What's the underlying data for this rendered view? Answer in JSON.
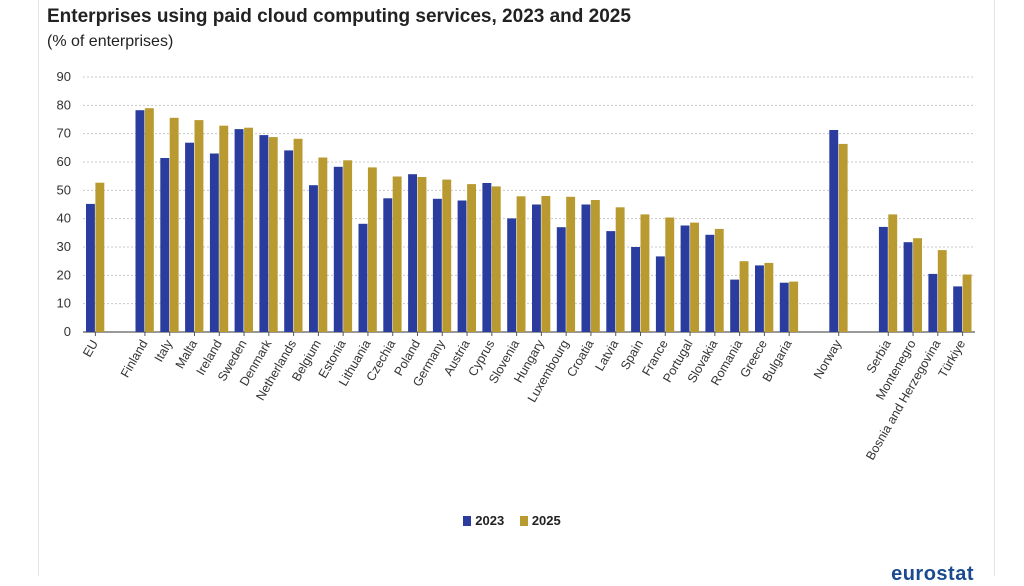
{
  "chart_data": {
    "type": "bar",
    "title": "Enterprises using paid cloud computing services, 2023 and 2025",
    "subtitle": "(% of enterprises)",
    "xlabel": "",
    "ylabel": "",
    "ylim": [
      0,
      90
    ],
    "yticks": [
      0,
      10,
      20,
      30,
      40,
      50,
      60,
      70,
      80,
      90
    ],
    "grid": true,
    "legend": "bottom-center",
    "categories": [
      "EU",
      "Finland",
      "Italy",
      "Malta",
      "Ireland",
      "Sweden",
      "Denmark",
      "Netherlands",
      "Belgium",
      "Estonia",
      "Lithuania",
      "Czechia",
      "Poland",
      "Germany",
      "Austria",
      "Cyprus",
      "Slovenia",
      "Hungary",
      "Luxembourg",
      "Croatia",
      "Latvia",
      "Spain",
      "France",
      "Portugal",
      "Slovakia",
      "Romania",
      "Greece",
      "Bulgaria",
      "Norway",
      "Serbia",
      "Montenegro",
      "Bosnia and Herzegovina",
      "Türkiye"
    ],
    "groups_gap_after": [
      "EU",
      "Bulgaria",
      "Norway"
    ],
    "series": [
      {
        "name": "2023",
        "color": "#2a3d9e",
        "values": [
          45.2,
          78.3,
          61.4,
          66.8,
          63.0,
          71.6,
          69.5,
          64.1,
          51.8,
          58.3,
          38.2,
          47.2,
          55.7,
          47.0,
          46.4,
          52.6,
          40.1,
          45.0,
          37.0,
          45.0,
          35.6,
          30.0,
          26.7,
          37.6,
          34.3,
          18.5,
          23.5,
          17.4,
          71.3,
          37.1,
          31.7,
          20.5,
          16.1
        ]
      },
      {
        "name": "2025",
        "color": "#b89a30",
        "values": [
          52.7,
          79.0,
          75.6,
          74.8,
          72.8,
          72.1,
          68.8,
          68.2,
          61.6,
          60.6,
          58.1,
          54.9,
          54.7,
          53.8,
          52.2,
          51.4,
          47.9,
          48.0,
          47.7,
          46.6,
          44.0,
          41.5,
          40.4,
          38.6,
          36.4,
          25.0,
          24.4,
          17.8,
          66.4,
          41.5,
          33.1,
          28.9,
          20.3
        ]
      }
    ]
  },
  "footer": {
    "logo": "eurostat"
  }
}
